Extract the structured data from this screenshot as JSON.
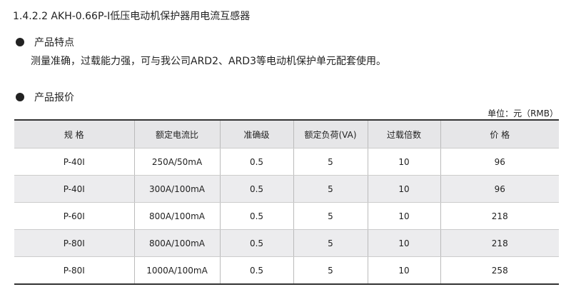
{
  "title": "1.4.2.2 AKH-0.66P-I低压电动机保护器用电流互感器",
  "features": {
    "heading": "产品特点",
    "text": "测量准确，过载能力强，可与我公司ARD2、ARD3等电动机保护单元配套使用。"
  },
  "pricing": {
    "heading": "产品报价",
    "unit": "单位：元（RMB）",
    "headers": [
      "规 格",
      "额定电流比",
      "准确级",
      "额定负荷(VA)",
      "过载倍数",
      "价 格"
    ],
    "rows": [
      [
        "P-40I",
        "250A/50mA",
        "0.5",
        "5",
        "10",
        "96"
      ],
      [
        "P-40I",
        "300A/100mA",
        "0.5",
        "5",
        "10",
        "96"
      ],
      [
        "P-60I",
        "800A/100mA",
        "0.5",
        "5",
        "10",
        "218"
      ],
      [
        "P-80I",
        "800A/100mA",
        "0.5",
        "5",
        "10",
        "218"
      ],
      [
        "P-80I",
        "1000A/100mA",
        "0.5",
        "5",
        "10",
        "258"
      ]
    ]
  }
}
